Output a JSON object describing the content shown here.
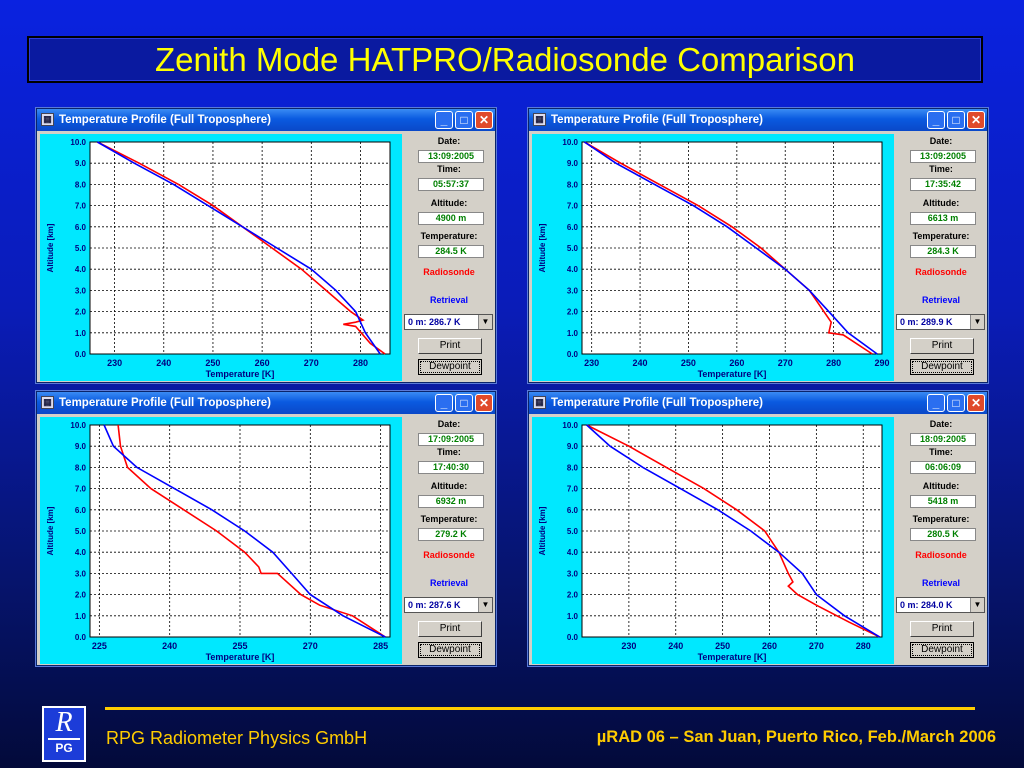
{
  "slide": {
    "title": "Zenith Mode HATPRO/Radiosonde Comparison",
    "company": "RPG Radiometer Physics GmbH",
    "conference": "µRAD 06  – San Juan, Puerto Rico,  Feb./March  2006",
    "logo_letter": "R",
    "logo_text": "PG"
  },
  "labels": {
    "date": "Date:",
    "time": "Time:",
    "altitude": "Altitude:",
    "temperature": "Temperature:",
    "radiosonde": "Radiosonde",
    "retrieval": "Retrieval",
    "print": "Print",
    "dewpoint": "Dewpoint",
    "window_title": "Temperature Profile (Full Troposphere)",
    "xlabel": "Temperature [K]",
    "ylabel": "Altitude [km]"
  },
  "colors": {
    "radiosonde": "#ff0000",
    "retrieval": "#0000ff",
    "plot_bg": "#00e8ff"
  },
  "windows": [
    {
      "date": "13:09:2005",
      "time": "05:57:37",
      "altitude": "4900 m",
      "temperature": "284.5 K",
      "combo": "0 m: 286.7 K"
    },
    {
      "date": "13:09:2005",
      "time": "17:35:42",
      "altitude": "6613 m",
      "temperature": "284.3 K",
      "combo": "0 m: 289.9 K"
    },
    {
      "date": "17:09:2005",
      "time": "17:40:30",
      "altitude": "6932 m",
      "temperature": "279.2 K",
      "combo": "0 m: 287.6 K"
    },
    {
      "date": "18:09:2005",
      "time": "06:06:09",
      "altitude": "5418 m",
      "temperature": "280.5 K",
      "combo": "0 m: 284.0 K"
    }
  ],
  "chart_data": [
    {
      "type": "line",
      "xlabel": "Temperature [K]",
      "ylabel": "Altitude [km]",
      "xlim": [
        225,
        286
      ],
      "ylim": [
        0,
        10
      ],
      "xticks": [
        230,
        240,
        250,
        260,
        270,
        280
      ],
      "yticks": [
        0.0,
        1.0,
        2.0,
        3.0,
        4.0,
        5.0,
        6.0,
        7.0,
        8.0,
        9.0,
        10.0
      ],
      "grid": true,
      "series": [
        {
          "name": "Radiosonde",
          "x": [
            226.5,
            235,
            243,
            250,
            256,
            262,
            268,
            273,
            278,
            280.5,
            279,
            276.5,
            279,
            282,
            285
          ],
          "y": [
            10,
            9,
            8,
            7,
            6,
            5,
            4,
            3,
            2,
            1.6,
            1.5,
            1.4,
            1.3,
            0.5,
            0
          ]
        },
        {
          "name": "Retrieval",
          "x": [
            226.5,
            234,
            242,
            249,
            256,
            263,
            270,
            275,
            279,
            281,
            284
          ],
          "y": [
            10,
            9,
            8,
            7,
            6,
            5,
            4,
            3,
            2,
            1,
            0
          ]
        }
      ]
    },
    {
      "type": "line",
      "xlabel": "Temperature [K]",
      "ylabel": "Altitude [km]",
      "xlim": [
        228,
        290
      ],
      "ylim": [
        0,
        10
      ],
      "xticks": [
        230,
        240,
        250,
        260,
        270,
        280,
        290
      ],
      "yticks": [
        0.0,
        1.0,
        2.0,
        3.0,
        4.0,
        5.0,
        6.0,
        7.0,
        8.0,
        9.0,
        10.0
      ],
      "grid": true,
      "series": [
        {
          "name": "Radiosonde",
          "x": [
            228.5,
            236,
            244,
            252,
            259,
            265,
            270,
            275,
            278,
            279.5,
            279,
            282,
            288
          ],
          "y": [
            10,
            9,
            8,
            7,
            6,
            5,
            4,
            3,
            2,
            1.5,
            1.0,
            0.9,
            0
          ]
        },
        {
          "name": "Retrieval",
          "x": [
            228.5,
            235,
            243,
            251,
            258,
            264,
            270,
            275,
            279,
            283,
            289
          ],
          "y": [
            10,
            9,
            8,
            7,
            6,
            5,
            4,
            3,
            2,
            1,
            0
          ]
        }
      ]
    },
    {
      "type": "line",
      "xlabel": "Temperature [K]",
      "ylabel": "Altitude [km]",
      "xlim": [
        223,
        287
      ],
      "ylim": [
        0,
        10
      ],
      "xticks": [
        225,
        240,
        255,
        270,
        285
      ],
      "yticks": [
        0.0,
        1.0,
        2.0,
        3.0,
        4.0,
        5.0,
        6.0,
        7.0,
        8.0,
        9.0,
        10.0
      ],
      "grid": true,
      "series": [
        {
          "name": "Radiosonde",
          "x": [
            229,
            229.5,
            231,
            236,
            243,
            250,
            256,
            259,
            259.5,
            263,
            268,
            272,
            279,
            286
          ],
          "y": [
            10,
            9,
            8,
            7,
            6,
            5,
            4,
            3.3,
            3.0,
            3.0,
            2.0,
            1.5,
            1.0,
            0
          ]
        },
        {
          "name": "Retrieval",
          "x": [
            226,
            228,
            233,
            241,
            249,
            256,
            262,
            266,
            270,
            277,
            286
          ],
          "y": [
            10,
            9,
            8,
            7,
            6,
            5,
            4,
            3,
            2,
            1,
            0
          ]
        }
      ]
    },
    {
      "type": "line",
      "xlabel": "Temperature [K]",
      "ylabel": "Altitude [km]",
      "xlim": [
        220,
        284
      ],
      "ylim": [
        0,
        10
      ],
      "xticks": [
        230,
        240,
        250,
        260,
        270,
        280
      ],
      "yticks": [
        0.0,
        1.0,
        2.0,
        3.0,
        4.0,
        5.0,
        6.0,
        7.0,
        8.0,
        9.0,
        10.0
      ],
      "grid": true,
      "series": [
        {
          "name": "Radiosonde",
          "x": [
            221,
            230,
            238,
            246,
            253,
            259,
            262,
            264,
            265,
            264,
            266,
            270,
            277,
            283.5
          ],
          "y": [
            10,
            9,
            8,
            7,
            6,
            5,
            4,
            3,
            2.6,
            2.4,
            2.0,
            1.5,
            0.7,
            0
          ]
        },
        {
          "name": "Retrieval",
          "x": [
            221,
            226,
            233,
            241,
            249,
            256,
            262,
            267,
            270,
            276,
            283.5
          ],
          "y": [
            10,
            9,
            8,
            7,
            6,
            5,
            4,
            3,
            2,
            1,
            0
          ]
        }
      ]
    }
  ]
}
